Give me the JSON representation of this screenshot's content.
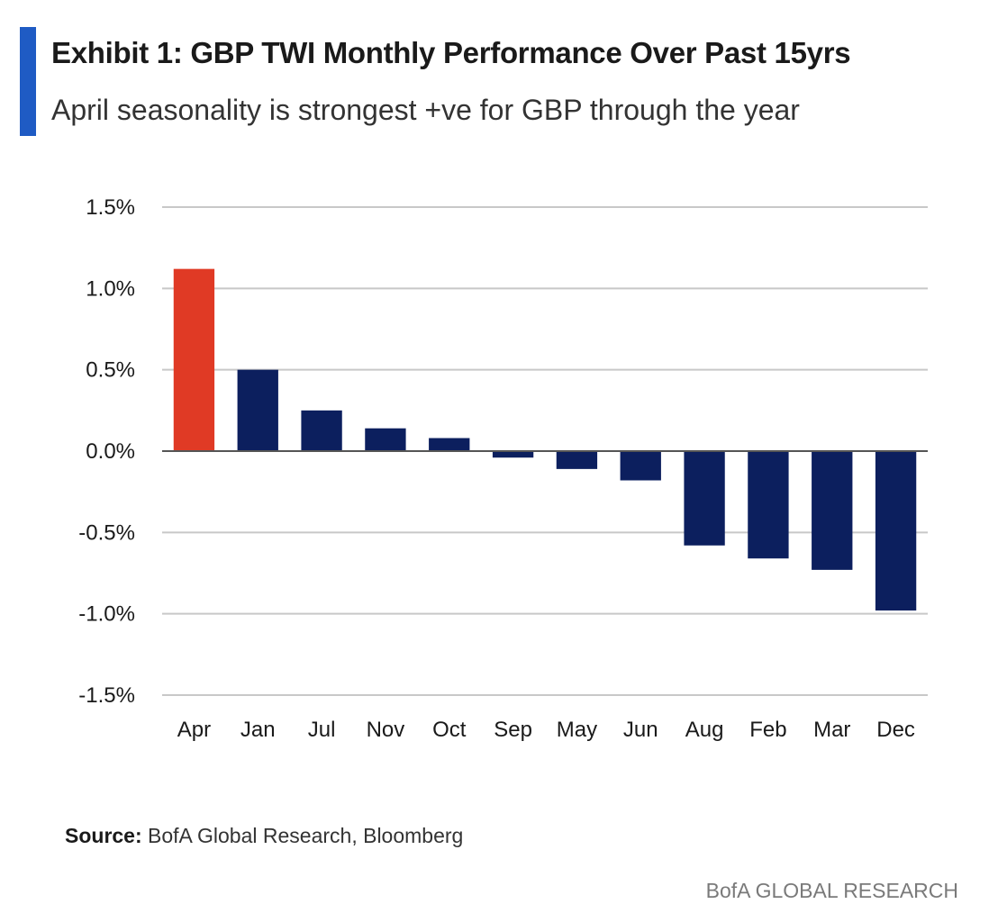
{
  "header": {
    "title": "Exhibit 1: GBP TWI Monthly Performance Over Past 15yrs",
    "subtitle": "April seasonality is strongest +ve for GBP through the year",
    "accent_color": "#1f5bc4"
  },
  "footer": {
    "source_label": "Source:",
    "source_text": " BofA Global Research, Bloomberg",
    "brand": "BofA GLOBAL RESEARCH"
  },
  "chart_data": {
    "type": "bar",
    "title": "Exhibit 1: GBP TWI Monthly Performance Over Past 15yrs",
    "subtitle": "April seasonality is strongest +ve for GBP through the year",
    "xlabel": "",
    "ylabel": "",
    "categories": [
      "Apr",
      "Jan",
      "Jul",
      "Nov",
      "Oct",
      "Sep",
      "May",
      "Jun",
      "Aug",
      "Feb",
      "Mar",
      "Dec"
    ],
    "values": [
      1.12,
      0.5,
      0.25,
      0.14,
      0.08,
      -0.04,
      -0.11,
      -0.18,
      -0.58,
      -0.66,
      -0.73,
      -0.98
    ],
    "value_unit": "%",
    "ylim": [
      -1.5,
      1.5
    ],
    "yticks": [
      1.5,
      1.0,
      0.5,
      0.0,
      -0.5,
      -1.0,
      -1.5
    ],
    "ytick_labels": [
      "1.5%",
      "1.0%",
      "0.5%",
      "0.0%",
      "-0.5%",
      "-1.0%",
      "-1.5%"
    ],
    "grid": true,
    "legend": "none",
    "colors": {
      "highlight": "#e03a25",
      "default": "#0c1f5e",
      "grid": "#c8c8c8",
      "zero_line": "#555555"
    },
    "highlight_category": "Apr"
  }
}
